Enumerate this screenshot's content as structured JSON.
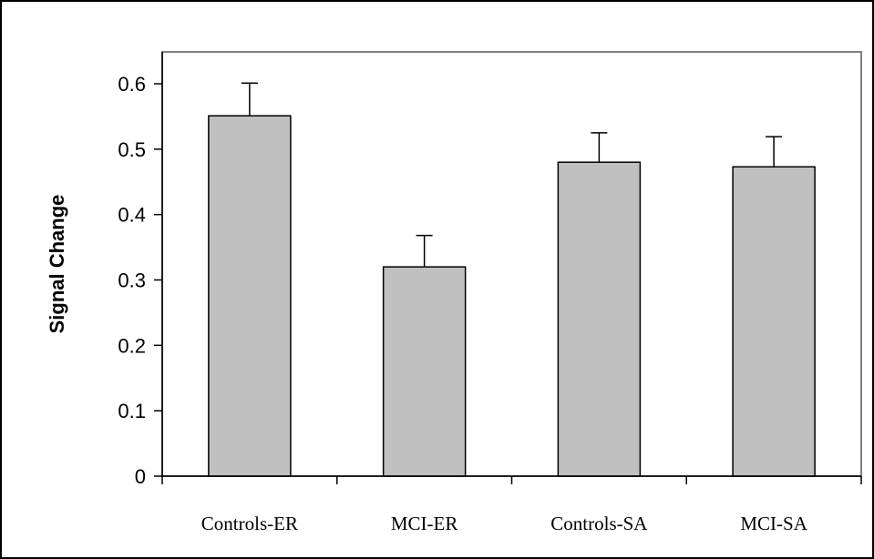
{
  "chart_data": {
    "type": "bar",
    "title": "",
    "xlabel": "",
    "ylabel": "Signal Change",
    "categories": [
      "Controls-ER",
      "MCI-ER",
      "Controls-SA",
      "MCI-SA"
    ],
    "values": [
      0.551,
      0.32,
      0.48,
      0.473
    ],
    "error_plus": [
      0.05,
      0.048,
      0.045,
      0.046
    ],
    "ylim": [
      0,
      0.6
    ],
    "yticks": [
      0,
      0.1,
      0.2,
      0.3,
      0.4,
      0.5,
      0.6
    ],
    "ytick_labels": [
      "0",
      "0.1",
      "0.2",
      "0.3",
      "0.4",
      "0.5",
      "0.6"
    ],
    "grid": false,
    "legend": "none",
    "colors": {
      "bar_fill": "#c0c0c0",
      "bar_stroke": "#000000",
      "plot_border": "#808080",
      "axis": "#000000"
    }
  }
}
